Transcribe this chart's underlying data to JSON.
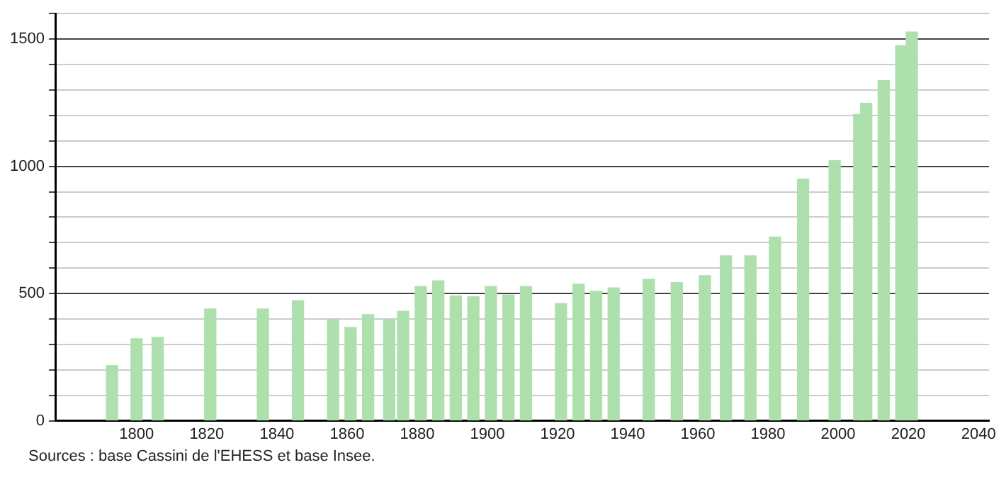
{
  "chart_data": {
    "type": "bar",
    "x": [
      1793,
      1800,
      1806,
      1821,
      1836,
      1846,
      1856,
      1861,
      1866,
      1872,
      1876,
      1881,
      1886,
      1891,
      1896,
      1901,
      1906,
      1911,
      1921,
      1926,
      1931,
      1936,
      1946,
      1954,
      1962,
      1968,
      1975,
      1982,
      1990,
      1999,
      2006,
      2008,
      2013,
      2018,
      2021
    ],
    "values": [
      217,
      322,
      328,
      439,
      439,
      472,
      398,
      367,
      417,
      398,
      430,
      528,
      550,
      491,
      487,
      528,
      494,
      528,
      461,
      537,
      509,
      522,
      556,
      543,
      570,
      648,
      648,
      722,
      950,
      1022,
      1204,
      1248,
      1337,
      1474,
      1528
    ],
    "color": "#aee0ae",
    "xlim": [
      1777,
      2043
    ],
    "xticks": [
      1800,
      1820,
      1840,
      1860,
      1880,
      1900,
      1920,
      1940,
      1960,
      1980,
      2000,
      2020,
      2040
    ],
    "ylim": [
      0,
      1600
    ],
    "yticks": [
      0,
      {
        "value": 100,
        "label": null
      },
      {
        "value": 200,
        "label": null
      },
      {
        "value": 300,
        "label": null
      },
      {
        "value": 400,
        "label": null
      },
      500,
      {
        "value": 600,
        "label": null
      },
      {
        "value": 700,
        "label": null
      },
      {
        "value": 800,
        "label": null
      },
      {
        "value": 900,
        "label": null
      },
      1000,
      {
        "value": 1100,
        "label": null
      },
      {
        "value": 1200,
        "label": null
      },
      {
        "value": 1300,
        "label": null
      },
      {
        "value": 1400,
        "label": null
      },
      1500,
      {
        "value": 1600,
        "label": null
      }
    ],
    "grid": "y",
    "legend": false,
    "annotations": [
      "Sources : base Cassini de l'EHESS et base Insee."
    ]
  }
}
